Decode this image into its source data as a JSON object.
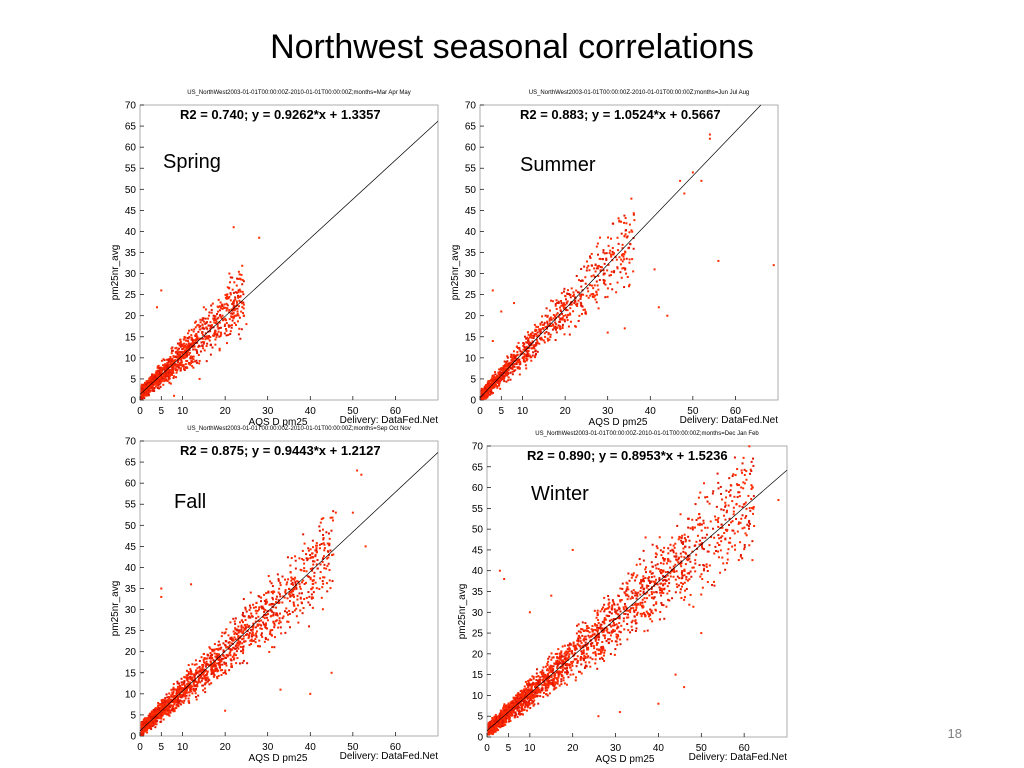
{
  "slide": {
    "title": "Northwest seasonal correlations",
    "page_number": "18"
  },
  "colors": {
    "points": "#ff2a00",
    "points_dense": "#e01500",
    "fit_line": "#000000",
    "frame": "#999999"
  },
  "chart_data": [
    {
      "type": "scatter",
      "season": "Spring",
      "plot_title": "US_NorthWest2003-01-01T00:00:00Z-2010-01-01T00:00:00Z;months=Mar  Apr  May",
      "equation": "R2 = 0.740; y = 0.9262*x + 1.3357",
      "r2": 0.74,
      "slope": 0.9262,
      "intercept": 1.3357,
      "xlabel": "AQS_D_pm25",
      "ylabel": "pm25nr_avg",
      "credit": "Delivery: DataFed.Net",
      "xlim": [
        0,
        70
      ],
      "ylim": [
        0,
        70
      ],
      "xticks": [
        0,
        5,
        10,
        20,
        30,
        40,
        50,
        60
      ],
      "yticks": [
        0,
        5,
        10,
        15,
        20,
        25,
        30,
        35,
        40,
        45,
        50,
        55,
        60,
        65,
        70
      ],
      "n_points": 1400,
      "cloud_max": 24,
      "spread": 0.26,
      "seed": 11,
      "outliers": [
        [
          22,
          41
        ],
        [
          28,
          38.5
        ],
        [
          21,
          30
        ],
        [
          15,
          22
        ],
        [
          5,
          26
        ],
        [
          4,
          22
        ],
        [
          10,
          8
        ],
        [
          14,
          5
        ],
        [
          25,
          18
        ],
        [
          8,
          1
        ]
      ]
    },
    {
      "type": "scatter",
      "season": "Summer",
      "plot_title": "US_NorthWest2003-01-01T00:00:00Z-2010-01-01T00:00:00Z;months=Jun  Jul  Aug",
      "equation": "R2 = 0.883; y = 1.0524*x + 0.5667",
      "r2": 0.883,
      "slope": 1.0524,
      "intercept": 0.5667,
      "xlabel": "AQS_D_pm25",
      "ylabel": "pm25nr_avg",
      "credit": "Delivery: DataFed.Net",
      "xlim": [
        0,
        70
      ],
      "ylim": [
        0,
        70
      ],
      "xticks": [
        0,
        5,
        10,
        20,
        30,
        40,
        50,
        60
      ],
      "yticks": [
        0,
        5,
        10,
        15,
        20,
        25,
        30,
        35,
        40,
        45,
        50,
        55,
        60,
        65,
        70
      ],
      "n_points": 1200,
      "cloud_max": 36,
      "spread": 0.22,
      "seed": 23,
      "outliers": [
        [
          54,
          63
        ],
        [
          54,
          62
        ],
        [
          50,
          54
        ],
        [
          52,
          52
        ],
        [
          47,
          52
        ],
        [
          48,
          49
        ],
        [
          56,
          33
        ],
        [
          69,
          32
        ],
        [
          41,
          31
        ],
        [
          35,
          27
        ],
        [
          42,
          22
        ],
        [
          44,
          20
        ],
        [
          30,
          16
        ],
        [
          34,
          17
        ],
        [
          3,
          26
        ],
        [
          5,
          21
        ],
        [
          8,
          23
        ],
        [
          3,
          14
        ]
      ]
    },
    {
      "type": "scatter",
      "season": "Fall",
      "plot_title": "US_NorthWest2003-01-01T00:00:00Z-2010-01-01T00:00:00Z;months=Sep  Oct  Nov",
      "equation": "R2 = 0.875; y = 0.9443*x + 1.2127",
      "r2": 0.875,
      "slope": 0.9443,
      "intercept": 1.2127,
      "xlabel": "AQS_D_pm25",
      "ylabel": "pm25nr_avg",
      "credit": "Delivery: DataFed.Net",
      "xlim": [
        0,
        70
      ],
      "ylim": [
        0,
        70
      ],
      "xticks": [
        0,
        5,
        10,
        20,
        30,
        40,
        50,
        60
      ],
      "yticks": [
        0,
        5,
        10,
        15,
        20,
        25,
        30,
        35,
        40,
        45,
        50,
        55,
        60,
        65,
        70
      ],
      "n_points": 2000,
      "cloud_max": 45,
      "spread": 0.2,
      "seed": 37,
      "outliers": [
        [
          51,
          63
        ],
        [
          52,
          62
        ],
        [
          46,
          53
        ],
        [
          50,
          53
        ],
        [
          53,
          45
        ],
        [
          5,
          35
        ],
        [
          5,
          33
        ],
        [
          12,
          36
        ],
        [
          24,
          22
        ],
        [
          40,
          10
        ],
        [
          45,
          15
        ],
        [
          20,
          6
        ],
        [
          33,
          11
        ]
      ]
    },
    {
      "type": "scatter",
      "season": "Winter",
      "plot_title": "US_NorthWest2003-01-01T00:00:00Z-2010-01-01T00:00:00Z;months=Dec  Jan  Feb",
      "equation": "R2 = 0.890; y = 0.8953*x + 1.5236",
      "r2": 0.89,
      "slope": 0.8953,
      "intercept": 1.5236,
      "xlabel": "AQS_D_pm25",
      "ylabel": "pm25nr_avg",
      "credit": "Delivery: DataFed.Net",
      "xlim": [
        0,
        70
      ],
      "ylim": [
        0,
        70
      ],
      "xticks": [
        0,
        5,
        10,
        20,
        30,
        40,
        50,
        60
      ],
      "yticks": [
        0,
        5,
        10,
        15,
        20,
        25,
        30,
        35,
        40,
        45,
        50,
        55,
        60,
        65,
        70
      ],
      "n_points": 2600,
      "cloud_max": 62,
      "spread": 0.2,
      "seed": 53,
      "outliers": [
        [
          3,
          40
        ],
        [
          4,
          38
        ],
        [
          10,
          30
        ],
        [
          15,
          34
        ],
        [
          20,
          45
        ],
        [
          37,
          48
        ],
        [
          45,
          48
        ],
        [
          58,
          63
        ],
        [
          62,
          60
        ],
        [
          61,
          58
        ],
        [
          68,
          57
        ],
        [
          50,
          25
        ],
        [
          44,
          15
        ],
        [
          46,
          12
        ],
        [
          40,
          8
        ],
        [
          31,
          6
        ],
        [
          26,
          5
        ]
      ]
    }
  ]
}
